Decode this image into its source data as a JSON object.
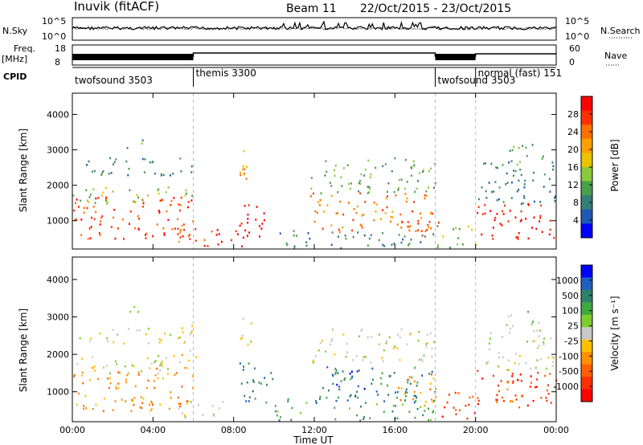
{
  "header": {
    "station": "Inuvik (fitACF)",
    "beam": "Beam 11",
    "dates": "22/Oct/2015 - 23/Oct/2015"
  },
  "strips": {
    "nsky_label": "N.Sky",
    "nsky_ticks": [
      "10^5",
      "10^0"
    ],
    "nsearch_label": "N.Search",
    "nsearch_ticks": [
      "10^5",
      "10^0"
    ],
    "freq_label": "Freq.",
    "freq_unit": "[MHz]",
    "freq_ticks": [
      "18",
      "8"
    ],
    "nave_label": "Nave",
    "nave_ticks": [
      "60",
      "0"
    ],
    "cpid_label": "CPID",
    "programs": [
      {
        "name": "twofsound 3503",
        "start": 0,
        "end": 6
      },
      {
        "name": "themis 3300",
        "start": 6,
        "end": 18
      },
      {
        "name": "twofsound 3503",
        "start": 18,
        "end": 20
      },
      {
        "name": "normal (fast) 151",
        "start": 20,
        "end": 24
      }
    ]
  },
  "chart_data": [
    {
      "type": "heatmap",
      "title": "Power",
      "ylabel": "Slant Range [km]",
      "ylim": [
        200,
        4600
      ],
      "yticks": [
        1000,
        2000,
        3000,
        4000
      ],
      "xlim": [
        0,
        24
      ],
      "colorbar": {
        "label": "Power [dB]",
        "ticks": [
          "28",
          "24",
          "20",
          "16",
          "12",
          "8",
          "4"
        ],
        "colors": [
          "#ff0000",
          "#ff3000",
          "#ff7000",
          "#ffa000",
          "#e8c400",
          "#8cc83c",
          "#48a048",
          "#387e78",
          "#1e5ab4",
          "#0000ff"
        ]
      },
      "regions": [
        {
          "t0": 0,
          "t1": 6,
          "r0": 500,
          "r1": 1700,
          "ci": 1
        },
        {
          "t0": 0,
          "t1": 6,
          "r0": 1500,
          "r1": 2000,
          "ci": 5
        },
        {
          "t0": 0.3,
          "t1": 6,
          "r0": 2300,
          "r1": 2800,
          "ci": 7
        },
        {
          "t0": 2.5,
          "t1": 3.5,
          "r0": 3000,
          "r1": 3300,
          "ci": 6
        },
        {
          "t0": 5.2,
          "t1": 7.0,
          "r0": 300,
          "r1": 900,
          "ci": 2
        },
        {
          "t0": 6.5,
          "t1": 8.5,
          "r0": 300,
          "r1": 800,
          "ci": 0
        },
        {
          "t0": 8.2,
          "t1": 9.5,
          "r0": 400,
          "r1": 1700,
          "ci": 0
        },
        {
          "t0": 8.2,
          "t1": 9.0,
          "r0": 1900,
          "r1": 3000,
          "ci": 3
        },
        {
          "t0": 10.0,
          "t1": 11.8,
          "r0": 250,
          "r1": 850,
          "ci": 7
        },
        {
          "t0": 11.8,
          "t1": 18.0,
          "r0": 700,
          "r1": 1800,
          "ci": 2
        },
        {
          "t0": 11.8,
          "t1": 18.0,
          "r0": 1800,
          "r1": 2800,
          "ci": 6
        },
        {
          "t0": 12.5,
          "t1": 18.0,
          "r0": 250,
          "r1": 700,
          "ci": 7
        },
        {
          "t0": 17.0,
          "t1": 18.2,
          "r0": 500,
          "r1": 1100,
          "ci": 1
        },
        {
          "t0": 18.0,
          "t1": 20.0,
          "r0": 250,
          "r1": 900,
          "ci": 5
        },
        {
          "t0": 20.0,
          "t1": 24.0,
          "r0": 500,
          "r1": 1500,
          "ci": 0
        },
        {
          "t0": 20.0,
          "t1": 24.0,
          "r0": 1500,
          "r1": 2700,
          "ci": 7
        },
        {
          "t0": 21.5,
          "t1": 23.5,
          "r0": 2600,
          "r1": 3200,
          "ci": 6
        }
      ]
    },
    {
      "type": "heatmap",
      "title": "Velocity",
      "ylabel": "Slant Range [km]",
      "ylim": [
        200,
        4600
      ],
      "yticks": [
        1000,
        2000,
        3000,
        4000
      ],
      "xlabel": "Time UT",
      "xlim": [
        0,
        24
      ],
      "xticks": [
        "00:00",
        "04:00",
        "08:00",
        "12:00",
        "16:00",
        "20:00",
        "00:00"
      ],
      "colorbar": {
        "label": "Velocity [m s⁻¹]",
        "ticks": [
          "1000",
          "500",
          "100",
          "25",
          "-25",
          "-100",
          "-500",
          "-1000"
        ],
        "colors": [
          "#0000ff",
          "#2060c0",
          "#30806a",
          "#40a840",
          "#80cc30",
          "#c8c8c8",
          "#ffc000",
          "#ff9000",
          "#ff6000",
          "#ff3000",
          "#ff0000"
        ]
      },
      "regions": [
        {
          "t0": 0,
          "t1": 6,
          "r0": 500,
          "r1": 1700,
          "ci": 7
        },
        {
          "t0": 0,
          "t1": 6,
          "r0": 1500,
          "r1": 2000,
          "ci": 5
        },
        {
          "t0": 0.3,
          "t1": 6,
          "r0": 2300,
          "r1": 2800,
          "ci": 5
        },
        {
          "t0": 2.5,
          "t1": 3.5,
          "r0": 3000,
          "r1": 3300,
          "ci": 4
        },
        {
          "t0": 5.2,
          "t1": 7.5,
          "r0": 300,
          "r1": 800,
          "ci": 5
        },
        {
          "t0": 5.0,
          "t1": 6.2,
          "r0": 1800,
          "r1": 2200,
          "ci": 6
        },
        {
          "t0": 8.2,
          "t1": 10.0,
          "r0": 700,
          "r1": 1800,
          "ci": 2
        },
        {
          "t0": 8.2,
          "t1": 9.0,
          "r0": 2200,
          "r1": 3000,
          "ci": 5
        },
        {
          "t0": 10.0,
          "t1": 11.8,
          "r0": 250,
          "r1": 850,
          "ci": 3
        },
        {
          "t0": 11.8,
          "t1": 18.0,
          "r0": 700,
          "r1": 1700,
          "ci": 2
        },
        {
          "t0": 13.0,
          "t1": 14.5,
          "r0": 900,
          "r1": 1700,
          "ci": 1
        },
        {
          "t0": 16.0,
          "t1": 18.0,
          "r0": 600,
          "r1": 1500,
          "ci": 7
        },
        {
          "t0": 11.8,
          "t1": 18.0,
          "r0": 1800,
          "r1": 2700,
          "ci": 5
        },
        {
          "t0": 12.5,
          "t1": 18.0,
          "r0": 250,
          "r1": 700,
          "ci": 3
        },
        {
          "t0": 18.0,
          "t1": 20.0,
          "r0": 300,
          "r1": 1000,
          "ci": 9
        },
        {
          "t0": 20.0,
          "t1": 24.0,
          "r0": 600,
          "r1": 1600,
          "ci": 9
        },
        {
          "t0": 21.0,
          "t1": 22.5,
          "r0": 700,
          "r1": 1400,
          "ci": 8
        },
        {
          "t0": 20.5,
          "t1": 24.0,
          "r0": 1600,
          "r1": 2600,
          "ci": 5
        },
        {
          "t0": 21.5,
          "t1": 23.5,
          "r0": 2600,
          "r1": 3200,
          "ci": 4
        }
      ]
    }
  ]
}
